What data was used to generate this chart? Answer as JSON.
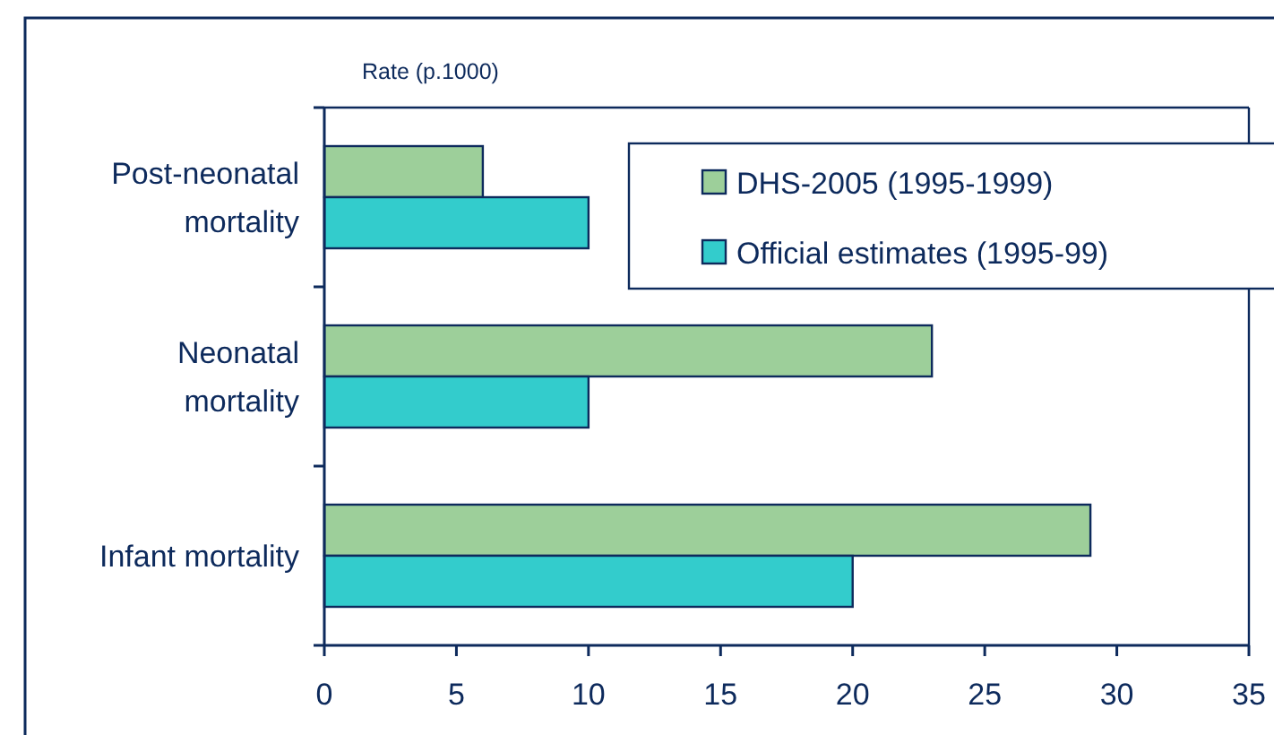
{
  "chart_data": {
    "type": "bar",
    "orientation": "horizontal",
    "xlabel": "Rate (p.1000)",
    "categories": [
      "Post-neonatal mortality",
      "Neonatal mortality",
      "Infant mortality"
    ],
    "series": [
      {
        "name": "DHS-2005 (1995-1999)",
        "color": "#9dcf9a",
        "values": [
          6,
          23,
          29
        ]
      },
      {
        "name": "Official estimates (1995-99)",
        "color": "#33cccc",
        "values": [
          10,
          10,
          20
        ]
      }
    ],
    "xlim": [
      0,
      35
    ],
    "xticks": [
      0,
      5,
      10,
      15,
      20,
      25,
      30,
      35
    ],
    "grid": false,
    "legend": "top right"
  }
}
